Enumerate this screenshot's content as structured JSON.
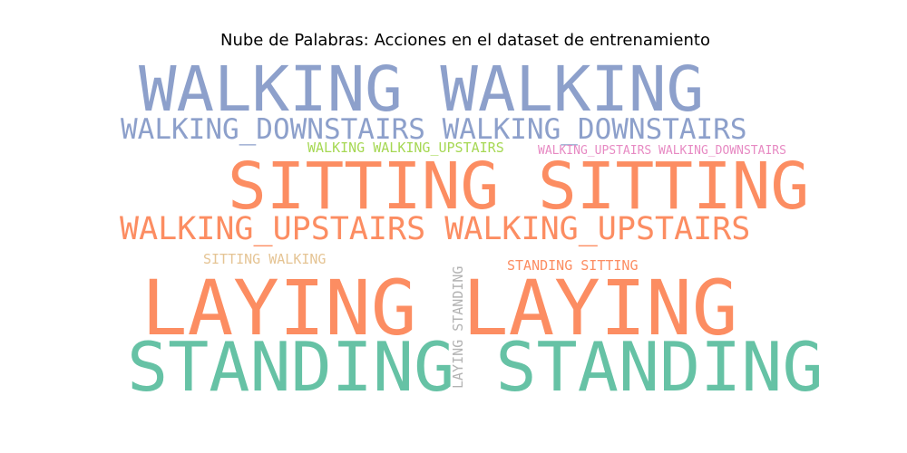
{
  "title": "Nube de Palabras: Acciones en el dataset de entrenamiento",
  "colors": {
    "blue": "#8da0cb",
    "orange": "#fc8d62",
    "green": "#66c2a5",
    "lime": "#a6d854",
    "pink": "#e78ac3",
    "tan": "#e5c494",
    "gray": "#b3b3b3"
  },
  "words": {
    "walking_walking": "WALKING WALKING",
    "walking_downstairs_x2": "WALKING_DOWNSTAIRS WALKING_DOWNSTAIRS",
    "walking_walking_upstairs": "WALKING WALKING_UPSTAIRS",
    "walking_upstairs_walking_downstairs": "WALKING_UPSTAIRS WALKING_DOWNSTAIRS",
    "sitting_sitting": "SITTING SITTING",
    "walking_upstairs_x2": "WALKING_UPSTAIRS WALKING_UPSTAIRS",
    "sitting_walking": "SITTING WALKING",
    "standing_sitting": "STANDING SITTING",
    "laying_standing": "LAYING STANDING",
    "laying_laying": "LAYING LAYING",
    "standing_standing": "STANDING STANDING"
  }
}
